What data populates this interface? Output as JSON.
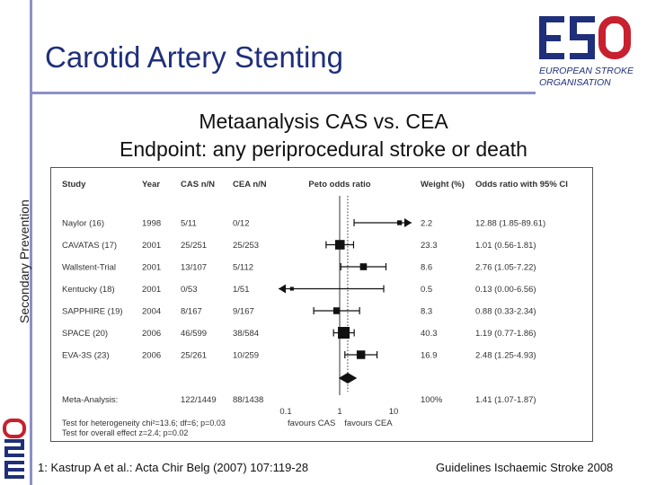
{
  "sidebar": {
    "label": "Secondary Prevention"
  },
  "header": {
    "title": "Carotid Artery Stenting"
  },
  "logo": {
    "letters": "ESO",
    "line1": "EUROPEAN STROKE",
    "line2": "ORGANISATION"
  },
  "heading": {
    "line1": "Metaanalysis CAS vs. CEA",
    "line2": "Endpoint: any periprocedural stroke or death"
  },
  "footer": {
    "left": "1: Kastrup A et al.: Acta Chir Belg (2007) 107:119-28",
    "right": "Guidelines Ischaemic Stroke 2008"
  },
  "colors": {
    "brand_blue": "#1f2f7a",
    "brand_red": "#c8202f",
    "accent_line": "#8c8fc8"
  },
  "chart_data": {
    "type": "forest",
    "columns": {
      "study": "Study",
      "year": "Year",
      "cas": "CAS n/N",
      "cea": "CEA n/N",
      "plot": "Peto odds ratio",
      "weight": "Weight (%)",
      "or": "Odds ratio with 95% CI"
    },
    "scale": "log",
    "xlim": [
      0.1,
      10
    ],
    "x_ticks": [
      "0.1",
      "1",
      "10"
    ],
    "xlabel_left": "favours CAS",
    "xlabel_right": "favours CEA",
    "studies": [
      {
        "study": "Naylor (16)",
        "year": "1998",
        "cas": "5/11",
        "cea": "0/12",
        "weight": "2.2",
        "or_text": "12.88 (1.85-89.61)",
        "or": 12.88,
        "lo": 1.85,
        "hi": 89.61
      },
      {
        "study": "CAVATAS (17)",
        "year": "2001",
        "cas": "25/251",
        "cea": "25/253",
        "weight": "23.3",
        "or_text": "1.01 (0.56-1.81)",
        "or": 1.01,
        "lo": 0.56,
        "hi": 1.81
      },
      {
        "study": "Wallstent-Trial",
        "year": "2001",
        "cas": "13/107",
        "cea": "5/112",
        "weight": "8.6",
        "or_text": "2.76 (1.05-7.22)",
        "or": 2.76,
        "lo": 1.05,
        "hi": 7.22
      },
      {
        "study": "Kentucky (18)",
        "year": "2001",
        "cas": "0/53",
        "cea": "1/51",
        "weight": "0.5",
        "or_text": "0.13 (0.00-6.56)",
        "or": 0.13,
        "lo": 0.001,
        "hi": 6.56
      },
      {
        "study": "SAPPHIRE (19)",
        "year": "2004",
        "cas": "8/167",
        "cea": "9/167",
        "weight": "8.3",
        "or_text": "0.88 (0.33-2.34)",
        "or": 0.88,
        "lo": 0.33,
        "hi": 2.34
      },
      {
        "study": "SPACE (20)",
        "year": "2006",
        "cas": "46/599",
        "cea": "38/584",
        "weight": "40.3",
        "or_text": "1.19 (0.77-1.86)",
        "or": 1.19,
        "lo": 0.77,
        "hi": 1.86
      },
      {
        "study": "EVA-3S (23)",
        "year": "2006",
        "cas": "25/261",
        "cea": "10/259",
        "weight": "16.9",
        "or_text": "2.48 (1.25-4.93)",
        "or": 2.48,
        "lo": 1.25,
        "hi": 4.93
      }
    ],
    "pooled": {
      "label": "Meta-Analysis:",
      "cas": "122/1449",
      "cea": "88/1438",
      "weight": "100%",
      "or_text": "1.41 (1.07-1.87)",
      "or": 1.41,
      "lo": 1.07,
      "hi": 1.87
    },
    "tests": [
      "Test for heterogeneity chi²=13.6; df=6; p=0.03",
      "Test for overall effect z=2.4; p=0.02"
    ]
  }
}
